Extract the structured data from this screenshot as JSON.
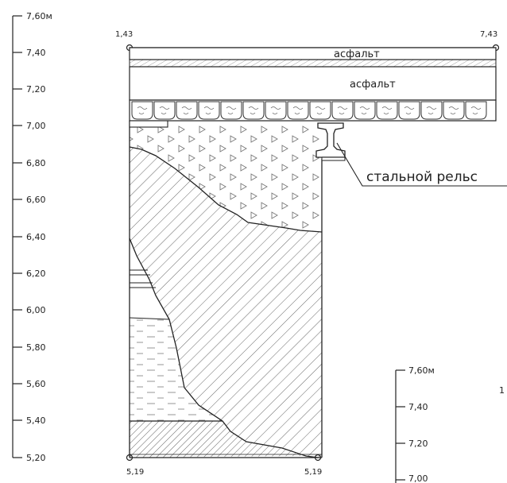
{
  "scale_left": {
    "ticks": [
      "7,60м",
      "7,40",
      "7,20",
      "7,00",
      "6,80",
      "6,60",
      "6,40",
      "6,20",
      "6,00",
      "5,80",
      "5,60",
      "5,40",
      "5,20"
    ]
  },
  "scale_right": {
    "ticks": [
      "7,60м",
      "7,40",
      "7,20",
      "7,00"
    ]
  },
  "elevations": {
    "top_left": "1,43",
    "top_right": "7,43",
    "bottom_left": "5,19",
    "bottom_right": "5,19"
  },
  "layers": {
    "asphalt_thin": "асфальт",
    "asphalt_thick": "асфальт"
  },
  "callout": {
    "steel_rail": "стальной рельс"
  },
  "edge_mark": "1"
}
